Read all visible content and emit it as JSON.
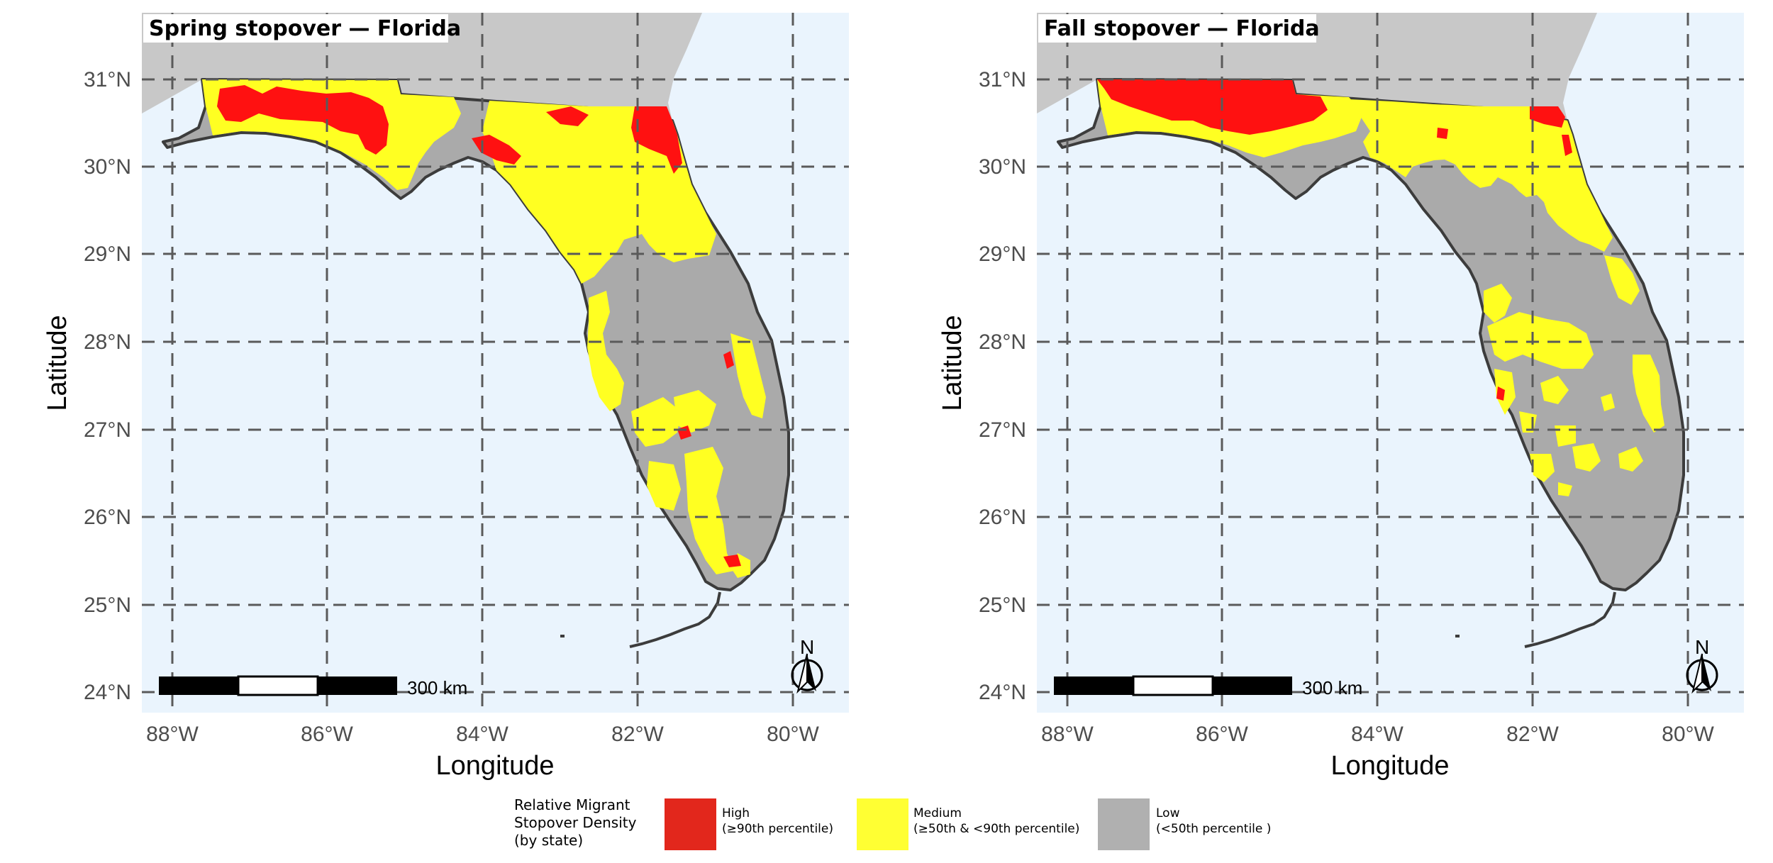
{
  "panels": [
    {
      "title": "Spring stopover — Florida",
      "x_title": "Longitude",
      "y_title": "Latitude",
      "x_ticks": [
        "88°W",
        "86°W",
        "84°W",
        "82°W",
        "80°W"
      ],
      "y_ticks": [
        "31°N",
        "30°N",
        "29°N",
        "28°N",
        "27°N",
        "26°N",
        "25°N",
        "24°N"
      ],
      "scale_label": "300 km",
      "north_label": "N"
    },
    {
      "title": "Fall stopover — Florida",
      "x_title": "Longitude",
      "y_title": "Latitude",
      "x_ticks": [
        "88°W",
        "86°W",
        "84°W",
        "82°W",
        "80°W"
      ],
      "y_ticks": [
        "31°N",
        "30°N",
        "29°N",
        "28°N",
        "27°N",
        "26°N",
        "25°N",
        "24°N"
      ],
      "scale_label": "300 km",
      "north_label": "N"
    }
  ],
  "legend": {
    "title_lines": [
      "Relative Migrant",
      "Stopover Density",
      "(by state)"
    ],
    "items": [
      {
        "label": "High",
        "sublabel": "(≥90th percentile)",
        "color": "#e2271c"
      },
      {
        "label": "Medium",
        "sublabel": "(≥50th & <90th percentile)",
        "color": "#ffff33"
      },
      {
        "label": "Low",
        "sublabel": "(<50th percentile )",
        "color": "#b0b0b0"
      }
    ]
  },
  "colors": {
    "ocean": "#eaf4fd",
    "land_neighbor": "#c8c8c8",
    "low": "#aaaaaa",
    "medium": "#ffff22",
    "high": "#ff1111",
    "outline": "#3c3c3c",
    "grid": "#5a5a5a"
  }
}
